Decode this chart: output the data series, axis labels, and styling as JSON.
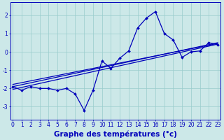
{
  "x": [
    0,
    1,
    2,
    3,
    4,
    5,
    6,
    7,
    8,
    9,
    10,
    11,
    12,
    13,
    14,
    15,
    16,
    17,
    18,
    19,
    20,
    21,
    22,
    23
  ],
  "y_main": [
    -1.9,
    -2.1,
    -1.9,
    -2.0,
    -2.0,
    -2.1,
    -2.0,
    -2.3,
    -3.2,
    -2.1,
    -0.5,
    -0.9,
    -0.35,
    0.05,
    1.3,
    1.85,
    2.2,
    1.0,
    0.65,
    -0.3,
    0.0,
    0.05,
    0.5,
    0.4
  ],
  "bg_color": "#cce8e8",
  "grid_color": "#99cccc",
  "line_color": "#0000bb",
  "line_width": 0.9,
  "marker": "D",
  "marker_size": 2.0,
  "xlabel": "Graphe des températures (°c)",
  "xlabel_fontsize": 7.5,
  "tick_fontsize": 5.5,
  "ylim": [
    -3.7,
    2.7
  ],
  "xlim": [
    -0.3,
    23.3
  ],
  "yticks": [
    -3,
    -2,
    -1,
    0,
    1,
    2
  ],
  "trend_lines": [
    {
      "x": [
        0,
        23
      ],
      "y": [
        -2.05,
        0.42
      ]
    },
    {
      "x": [
        0,
        23
      ],
      "y": [
        -1.9,
        0.5
      ]
    },
    {
      "x": [
        0,
        23
      ],
      "y": [
        -1.78,
        0.46
      ]
    }
  ]
}
